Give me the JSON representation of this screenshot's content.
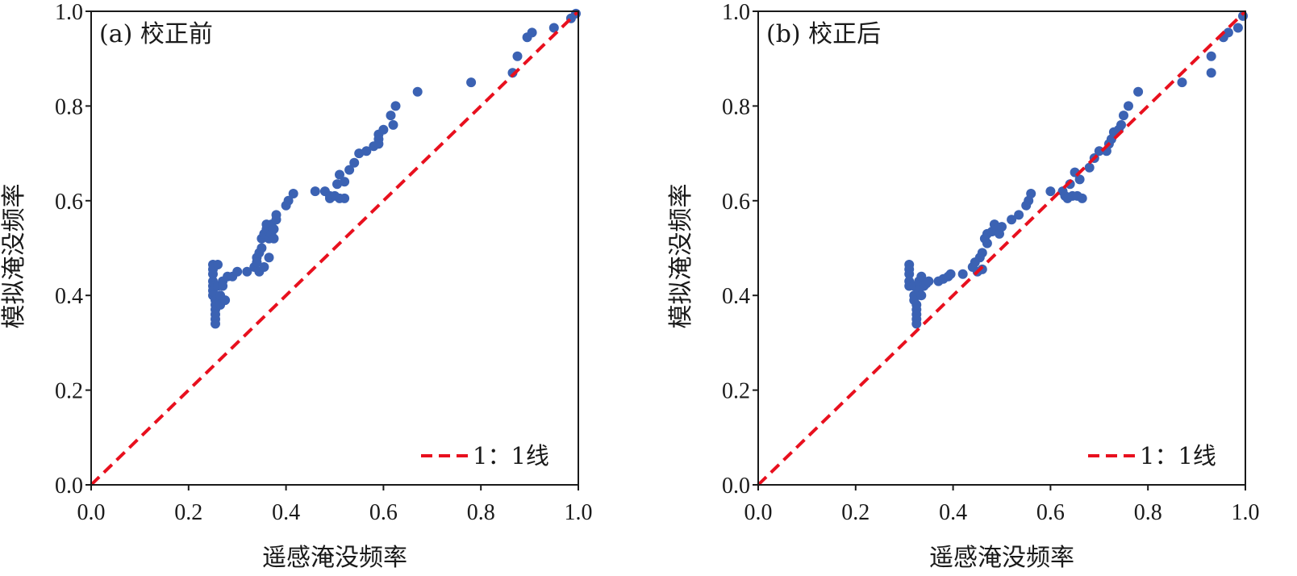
{
  "chart_data": [
    {
      "type": "scatter",
      "title": "(a) 校正前",
      "xlabel": "遥感淹没频率",
      "ylabel": "模拟淹没频率",
      "xlim": [
        0.0,
        1.0
      ],
      "ylim": [
        0.0,
        1.0
      ],
      "xticks": [
        "0.0",
        "0.2",
        "0.4",
        "0.6",
        "0.8",
        "1.0"
      ],
      "yticks": [
        "0.0",
        "0.2",
        "0.4",
        "0.6",
        "0.8",
        "1.0"
      ],
      "grid": false,
      "legend": {
        "placement": "bottom-right",
        "entries": [
          {
            "label": "1：1线",
            "style": "dashed",
            "color": "#e8101e"
          }
        ]
      },
      "reference_line": {
        "label": "1：1线",
        "from": [
          0,
          0
        ],
        "to": [
          1,
          1
        ],
        "color": "#e8101e"
      },
      "point_color": "#3b62b3",
      "series": [
        {
          "name": "points",
          "points": [
            [
              0.25,
              0.465
            ],
            [
              0.25,
              0.455
            ],
            [
              0.25,
              0.445
            ],
            [
              0.25,
              0.43
            ],
            [
              0.25,
              0.42
            ],
            [
              0.25,
              0.41
            ],
            [
              0.25,
              0.4
            ],
            [
              0.255,
              0.39
            ],
            [
              0.255,
              0.38
            ],
            [
              0.255,
              0.37
            ],
            [
              0.255,
              0.36
            ],
            [
              0.255,
              0.35
            ],
            [
              0.255,
              0.34
            ],
            [
              0.26,
              0.465
            ],
            [
              0.26,
              0.42
            ],
            [
              0.265,
              0.4
            ],
            [
              0.265,
              0.38
            ],
            [
              0.27,
              0.43
            ],
            [
              0.27,
              0.42
            ],
            [
              0.275,
              0.39
            ],
            [
              0.28,
              0.44
            ],
            [
              0.29,
              0.44
            ],
            [
              0.3,
              0.45
            ],
            [
              0.32,
              0.45
            ],
            [
              0.335,
              0.46
            ],
            [
              0.34,
              0.48
            ],
            [
              0.34,
              0.47
            ],
            [
              0.345,
              0.49
            ],
            [
              0.345,
              0.45
            ],
            [
              0.35,
              0.5
            ],
            [
              0.35,
              0.52
            ],
            [
              0.355,
              0.53
            ],
            [
              0.355,
              0.46
            ],
            [
              0.36,
              0.54
            ],
            [
              0.36,
              0.55
            ],
            [
              0.365,
              0.52
            ],
            [
              0.365,
              0.48
            ],
            [
              0.37,
              0.53
            ],
            [
              0.37,
              0.55
            ],
            [
              0.375,
              0.54
            ],
            [
              0.375,
              0.52
            ],
            [
              0.38,
              0.56
            ],
            [
              0.38,
              0.57
            ],
            [
              0.4,
              0.59
            ],
            [
              0.405,
              0.6
            ],
            [
              0.415,
              0.615
            ],
            [
              0.46,
              0.62
            ],
            [
              0.48,
              0.62
            ],
            [
              0.49,
              0.61
            ],
            [
              0.49,
              0.605
            ],
            [
              0.5,
              0.61
            ],
            [
              0.51,
              0.605
            ],
            [
              0.52,
              0.605
            ],
            [
              0.505,
              0.635
            ],
            [
              0.51,
              0.655
            ],
            [
              0.52,
              0.64
            ],
            [
              0.53,
              0.665
            ],
            [
              0.54,
              0.68
            ],
            [
              0.55,
              0.7
            ],
            [
              0.565,
              0.705
            ],
            [
              0.58,
              0.715
            ],
            [
              0.59,
              0.72
            ],
            [
              0.59,
              0.73
            ],
            [
              0.59,
              0.74
            ],
            [
              0.6,
              0.75
            ],
            [
              0.615,
              0.78
            ],
            [
              0.62,
              0.76
            ],
            [
              0.625,
              0.8
            ],
            [
              0.67,
              0.83
            ],
            [
              0.78,
              0.85
            ],
            [
              0.865,
              0.87
            ],
            [
              0.875,
              0.905
            ],
            [
              0.895,
              0.945
            ],
            [
              0.905,
              0.955
            ],
            [
              0.95,
              0.965
            ],
            [
              0.985,
              0.985
            ],
            [
              0.995,
              0.995
            ]
          ]
        }
      ]
    },
    {
      "type": "scatter",
      "title": "(b) 校正后",
      "xlabel": "遥感淹没频率",
      "ylabel": "模拟淹没频率",
      "xlim": [
        0.0,
        1.0
      ],
      "ylim": [
        0.0,
        1.0
      ],
      "xticks": [
        "0.0",
        "0.2",
        "0.4",
        "0.6",
        "0.8",
        "1.0"
      ],
      "yticks": [
        "0.0",
        "0.2",
        "0.4",
        "0.6",
        "0.8",
        "1.0"
      ],
      "grid": false,
      "legend": {
        "placement": "bottom-right",
        "entries": [
          {
            "label": "1：1线",
            "style": "dashed",
            "color": "#e8101e"
          }
        ]
      },
      "reference_line": {
        "label": "1：1线",
        "from": [
          0,
          0
        ],
        "to": [
          1,
          1
        ],
        "color": "#e8101e"
      },
      "point_color": "#3b62b3",
      "series": [
        {
          "name": "points",
          "points": [
            [
              0.31,
              0.465
            ],
            [
              0.31,
              0.455
            ],
            [
              0.31,
              0.445
            ],
            [
              0.31,
              0.43
            ],
            [
              0.31,
              0.42
            ],
            [
              0.32,
              0.42
            ],
            [
              0.32,
              0.4
            ],
            [
              0.32,
              0.39
            ],
            [
              0.325,
              0.38
            ],
            [
              0.325,
              0.37
            ],
            [
              0.325,
              0.36
            ],
            [
              0.325,
              0.35
            ],
            [
              0.325,
              0.34
            ],
            [
              0.33,
              0.43
            ],
            [
              0.33,
              0.41
            ],
            [
              0.335,
              0.4
            ],
            [
              0.335,
              0.44
            ],
            [
              0.34,
              0.42
            ],
            [
              0.345,
              0.425
            ],
            [
              0.35,
              0.43
            ],
            [
              0.37,
              0.43
            ],
            [
              0.38,
              0.435
            ],
            [
              0.39,
              0.44
            ],
            [
              0.395,
              0.445
            ],
            [
              0.42,
              0.445
            ],
            [
              0.44,
              0.46
            ],
            [
              0.445,
              0.47
            ],
            [
              0.45,
              0.45
            ],
            [
              0.455,
              0.48
            ],
            [
              0.46,
              0.49
            ],
            [
              0.46,
              0.455
            ],
            [
              0.465,
              0.52
            ],
            [
              0.47,
              0.51
            ],
            [
              0.47,
              0.53
            ],
            [
              0.48,
              0.535
            ],
            [
              0.485,
              0.55
            ],
            [
              0.49,
              0.54
            ],
            [
              0.495,
              0.53
            ],
            [
              0.5,
              0.545
            ],
            [
              0.52,
              0.56
            ],
            [
              0.535,
              0.57
            ],
            [
              0.55,
              0.59
            ],
            [
              0.555,
              0.6
            ],
            [
              0.56,
              0.615
            ],
            [
              0.6,
              0.62
            ],
            [
              0.625,
              0.62
            ],
            [
              0.63,
              0.61
            ],
            [
              0.635,
              0.605
            ],
            [
              0.645,
              0.61
            ],
            [
              0.655,
              0.61
            ],
            [
              0.665,
              0.605
            ],
            [
              0.64,
              0.635
            ],
            [
              0.65,
              0.66
            ],
            [
              0.66,
              0.645
            ],
            [
              0.68,
              0.67
            ],
            [
              0.69,
              0.69
            ],
            [
              0.7,
              0.705
            ],
            [
              0.715,
              0.705
            ],
            [
              0.72,
              0.72
            ],
            [
              0.725,
              0.73
            ],
            [
              0.73,
              0.745
            ],
            [
              0.74,
              0.75
            ],
            [
              0.745,
              0.76
            ],
            [
              0.75,
              0.78
            ],
            [
              0.76,
              0.8
            ],
            [
              0.78,
              0.83
            ],
            [
              0.87,
              0.85
            ],
            [
              0.93,
              0.87
            ],
            [
              0.93,
              0.905
            ],
            [
              0.955,
              0.945
            ],
            [
              0.965,
              0.955
            ],
            [
              0.985,
              0.965
            ],
            [
              0.995,
              0.99
            ]
          ]
        }
      ]
    }
  ]
}
